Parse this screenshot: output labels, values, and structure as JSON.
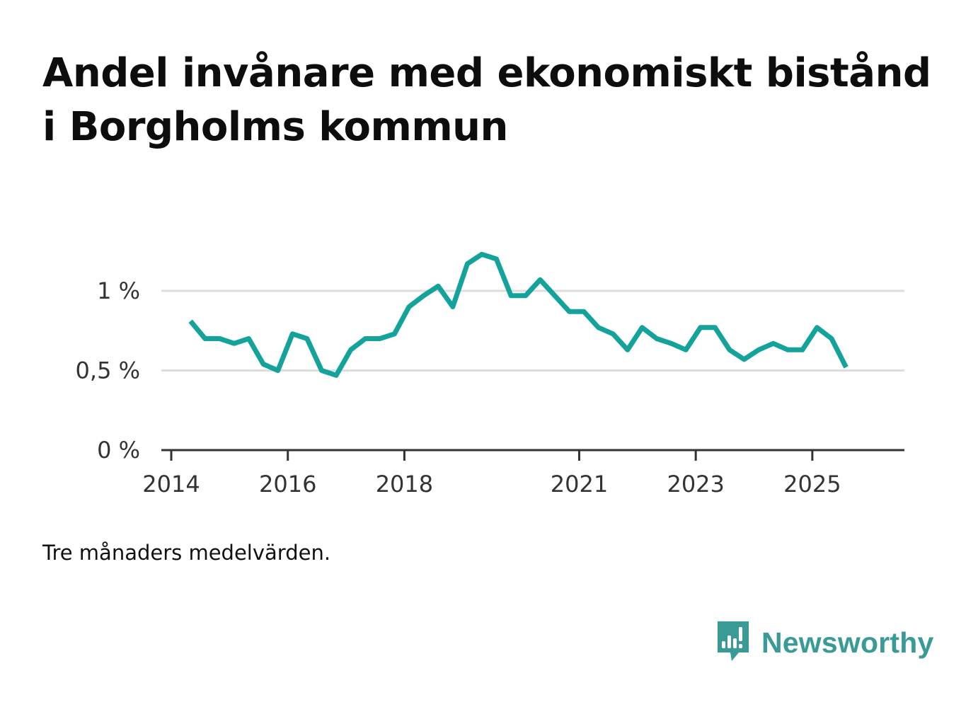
{
  "title": "Andel invånare med ekonomiskt bistånd i Borgholms kommun",
  "caption": "Tre månaders medelvärden.",
  "brand": {
    "name": "Newsworthy",
    "icon": "newsworthy-bar-chart-icon"
  },
  "colors": {
    "line": "#13a39b",
    "grid": "#dddddd",
    "axis": "#333333",
    "brand": "#3a9a96"
  },
  "chart_data": {
    "type": "line",
    "title": "Andel invånare med ekonomiskt bistånd i Borgholms kommun",
    "xlabel": "",
    "ylabel": "",
    "ylim": [
      0,
      1.35
    ],
    "xlim": [
      2013.83,
      2026.58
    ],
    "grid": true,
    "y_ticks": [
      {
        "value": 0,
        "label": "0 %"
      },
      {
        "value": 0.5,
        "label": "0,5 %"
      },
      {
        "value": 1,
        "label": "1 %"
      }
    ],
    "x_ticks": [
      {
        "value": 2014,
        "label": "2014"
      },
      {
        "value": 2016,
        "label": "2016"
      },
      {
        "value": 2018,
        "label": "2018"
      },
      {
        "value": 2021,
        "label": "2021"
      },
      {
        "value": 2023,
        "label": "2023"
      },
      {
        "value": 2025,
        "label": "2025"
      }
    ],
    "series": [
      {
        "name": "Andel invånare med ekonomiskt bistånd",
        "x": [
          2014.33,
          2014.58,
          2014.83,
          2015.08,
          2015.33,
          2015.58,
          2015.83,
          2016.08,
          2016.33,
          2016.58,
          2016.83,
          2017.08,
          2017.33,
          2017.58,
          2017.83,
          2018.08,
          2018.33,
          2018.58,
          2018.83,
          2019.08,
          2019.33,
          2019.58,
          2019.83,
          2020.08,
          2020.33,
          2020.58,
          2020.83,
          2021.08,
          2021.33,
          2021.58,
          2021.83,
          2022.08,
          2022.33,
          2022.58,
          2022.83,
          2023.08,
          2023.33,
          2023.58,
          2023.83,
          2024.08,
          2024.33,
          2024.58,
          2024.83,
          2025.08,
          2025.33,
          2025.58
        ],
        "values": [
          0.81,
          0.7,
          0.7,
          0.67,
          0.7,
          0.54,
          0.5,
          0.73,
          0.7,
          0.5,
          0.47,
          0.63,
          0.7,
          0.7,
          0.73,
          0.9,
          0.97,
          1.03,
          0.9,
          1.17,
          1.23,
          1.2,
          0.97,
          0.97,
          1.07,
          0.97,
          0.87,
          0.87,
          0.77,
          0.73,
          0.63,
          0.77,
          0.7,
          0.67,
          0.63,
          0.77,
          0.77,
          0.63,
          0.57,
          0.63,
          0.67,
          0.63,
          0.63,
          0.77,
          0.7,
          0.52
        ]
      }
    ]
  }
}
